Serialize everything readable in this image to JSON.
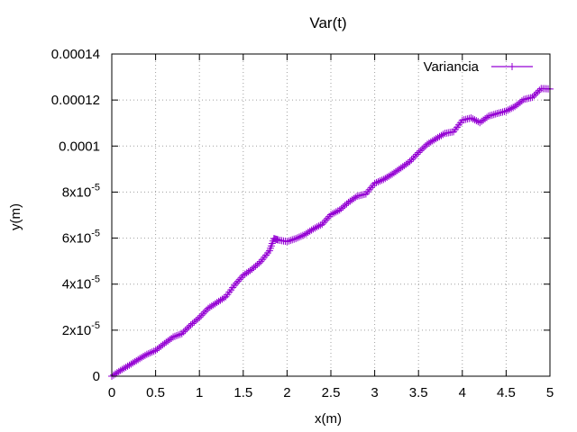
{
  "chart_data": {
    "type": "line",
    "title": "Var(t)",
    "xlabel": "x(m)",
    "ylabel": "y(m)",
    "xlim": [
      0,
      5
    ],
    "ylim": [
      0,
      0.00014
    ],
    "x_ticks": [
      {
        "value": 0,
        "label": "0"
      },
      {
        "value": 0.5,
        "label": "0.5"
      },
      {
        "value": 1,
        "label": "1"
      },
      {
        "value": 1.5,
        "label": "1.5"
      },
      {
        "value": 2,
        "label": "2"
      },
      {
        "value": 2.5,
        "label": "2.5"
      },
      {
        "value": 3,
        "label": "3"
      },
      {
        "value": 3.5,
        "label": "3.5"
      },
      {
        "value": 4,
        "label": "4"
      },
      {
        "value": 4.5,
        "label": "4.5"
      },
      {
        "value": 5,
        "label": "5"
      }
    ],
    "y_ticks": [
      {
        "value": 0,
        "base": "0",
        "exp": ""
      },
      {
        "value": 2e-05,
        "base": "2x10",
        "exp": "-5"
      },
      {
        "value": 4e-05,
        "base": "4x10",
        "exp": "-5"
      },
      {
        "value": 6e-05,
        "base": "6x10",
        "exp": "-5"
      },
      {
        "value": 8e-05,
        "base": "8x10",
        "exp": "-5"
      },
      {
        "value": 0.0001,
        "base": "0.0001",
        "exp": ""
      },
      {
        "value": 0.00012,
        "base": "0.00012",
        "exp": ""
      },
      {
        "value": 0.00014,
        "base": "0.00014",
        "exp": ""
      }
    ],
    "grid": true,
    "legend_position": "top-right",
    "series": [
      {
        "name": "Variancia",
        "color": "#9400d3",
        "marker": "plus",
        "points": [
          [
            0.0,
            0.0
          ],
          [
            0.1,
            2.5e-06
          ],
          [
            0.2,
            4.8e-06
          ],
          [
            0.3,
            7.2e-06
          ],
          [
            0.4,
            9.5e-06
          ],
          [
            0.5,
            1.12e-05
          ],
          [
            0.6,
            1.42e-05
          ],
          [
            0.7,
            1.7e-05
          ],
          [
            0.8,
            1.85e-05
          ],
          [
            0.9,
            2.22e-05
          ],
          [
            1.0,
            2.55e-05
          ],
          [
            1.1,
            2.95e-05
          ],
          [
            1.2,
            3.2e-05
          ],
          [
            1.3,
            3.45e-05
          ],
          [
            1.4,
            3.95e-05
          ],
          [
            1.5,
            4.38e-05
          ],
          [
            1.6,
            4.65e-05
          ],
          [
            1.7,
            4.98e-05
          ],
          [
            1.8,
            5.45e-05
          ],
          [
            1.85,
            5.98e-05
          ],
          [
            1.9,
            5.92e-05
          ],
          [
            2.0,
            5.85e-05
          ],
          [
            2.1,
            5.98e-05
          ],
          [
            2.2,
            6.15e-05
          ],
          [
            2.3,
            6.4e-05
          ],
          [
            2.4,
            6.6e-05
          ],
          [
            2.5,
            7.02e-05
          ],
          [
            2.6,
            7.22e-05
          ],
          [
            2.7,
            7.55e-05
          ],
          [
            2.8,
            7.82e-05
          ],
          [
            2.9,
            7.92e-05
          ],
          [
            3.0,
            8.38e-05
          ],
          [
            3.1,
            8.55e-05
          ],
          [
            3.2,
            8.78e-05
          ],
          [
            3.3,
            9.05e-05
          ],
          [
            3.4,
            9.32e-05
          ],
          [
            3.5,
            9.72e-05
          ],
          [
            3.6,
            0.0001008
          ],
          [
            3.7,
            0.0001032
          ],
          [
            3.8,
            0.0001055
          ],
          [
            3.9,
            0.0001062
          ],
          [
            4.0,
            0.0001112
          ],
          [
            4.1,
            0.0001122
          ],
          [
            4.2,
            0.0001102
          ],
          [
            4.3,
            0.000113
          ],
          [
            4.4,
            0.0001142
          ],
          [
            4.5,
            0.0001152
          ],
          [
            4.6,
            0.0001172
          ],
          [
            4.7,
            0.0001202
          ],
          [
            4.8,
            0.0001212
          ],
          [
            4.9,
            0.000125
          ],
          [
            5.0,
            0.0001248
          ]
        ]
      }
    ]
  }
}
